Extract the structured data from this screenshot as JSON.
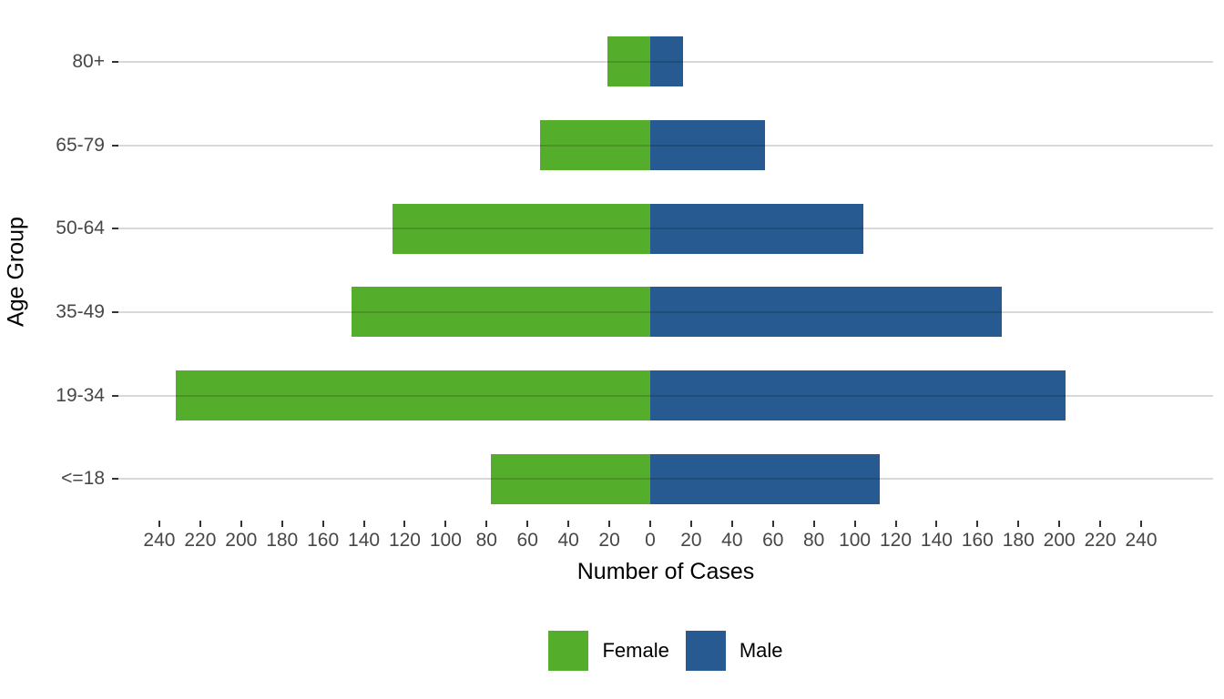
{
  "figure": {
    "x_axis_title": "Number of Cases",
    "y_axis_title": "Age Group"
  },
  "legend": {
    "items": [
      {
        "label": "Female",
        "color": "#55AE2B"
      },
      {
        "label": "Male",
        "color": "#265A90"
      }
    ]
  },
  "chart_data": {
    "type": "bar",
    "subtype": "population-pyramid",
    "orientation": "horizontal-diverging",
    "title": "",
    "xlabel": "Number of Cases",
    "ylabel": "Age Group",
    "categories": [
      "80+",
      "65-79",
      "50-64",
      "35-49",
      "19-34",
      "<=18"
    ],
    "series": [
      {
        "name": "Female",
        "side": "left",
        "color": "#55AE2B",
        "values": [
          21,
          54,
          126,
          146,
          232,
          78
        ]
      },
      {
        "name": "Male",
        "side": "right",
        "color": "#265A90",
        "values": [
          16,
          56,
          104,
          172,
          203,
          112
        ]
      }
    ],
    "x_axis": {
      "tick_step": 20,
      "tick_max": 240,
      "tick_values": [
        -240,
        -220,
        -200,
        -180,
        -160,
        -140,
        -120,
        -100,
        -80,
        -60,
        -40,
        -20,
        0,
        20,
        40,
        60,
        80,
        100,
        120,
        140,
        160,
        180,
        200,
        220,
        240
      ],
      "tick_labels_absolute": true,
      "xlim": [
        -260,
        275
      ]
    },
    "grid": "horizontal-major-only",
    "legend_position": "bottom",
    "colors": {
      "female": "#55AE2B",
      "male": "#265A90",
      "gridline": "#d9d9d9",
      "tick_mark": "#333333",
      "tick_label": "#474747",
      "axis_title": "#000000",
      "background": "#ffffff"
    }
  }
}
